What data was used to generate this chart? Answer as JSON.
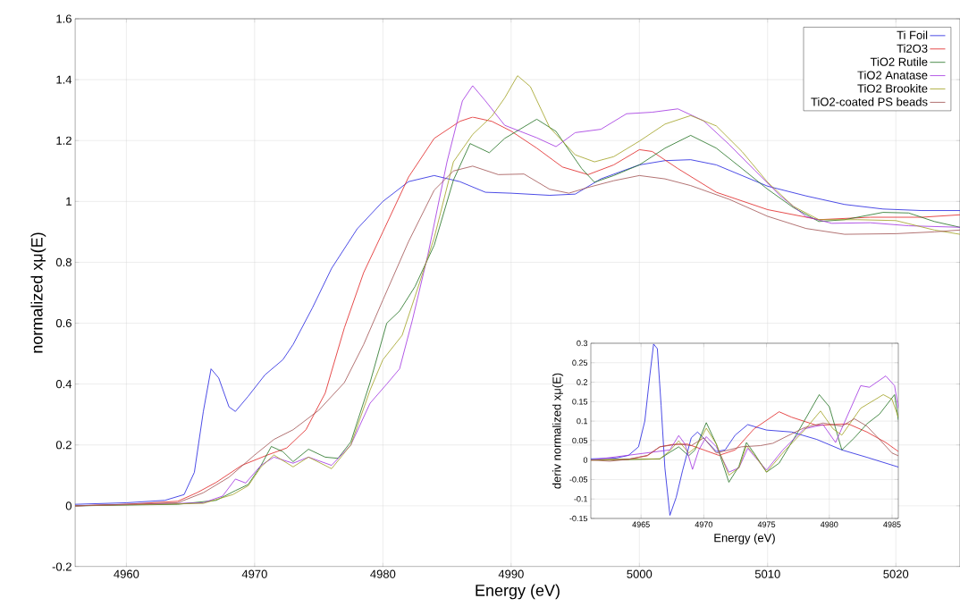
{
  "chart_data": [
    {
      "type": "line",
      "xlabel": "Energy (eV)",
      "ylabel": "normalized xμ(E)",
      "xlim": [
        4956,
        5025
      ],
      "ylim": [
        -0.2,
        1.6
      ],
      "xticks": [
        4960,
        4970,
        4980,
        4990,
        5000,
        5010,
        5020
      ],
      "yticks": [
        -0.2,
        0,
        0.2,
        0.4,
        0.6,
        0.8,
        1,
        1.2,
        1.4,
        1.6
      ],
      "grid": true,
      "legend": "top right",
      "series": [
        {
          "name": "Ti Foil",
          "color": "#2020e0",
          "x": [
            4956,
            4960,
            4963,
            4964.5,
            4965.3,
            4966,
            4966.6,
            4967.2,
            4968,
            4968.5,
            4969.5,
            4970.8,
            4972.2,
            4973,
            4974.5,
            4976,
            4978,
            4980,
            4982,
            4984,
            4986,
            4988,
            4990,
            4993,
            4995,
            4997,
            5000,
            5002,
            5004,
            5006,
            5008,
            5010,
            5013,
            5016,
            5019,
            5022,
            5025
          ],
          "values": [
            0.005,
            0.01,
            0.018,
            0.037,
            0.11,
            0.31,
            0.45,
            0.42,
            0.325,
            0.31,
            0.36,
            0.43,
            0.48,
            0.53,
            0.65,
            0.78,
            0.91,
            1.0,
            1.065,
            1.085,
            1.065,
            1.03,
            1.027,
            1.02,
            1.024,
            1.074,
            1.12,
            1.134,
            1.137,
            1.12,
            1.085,
            1.05,
            1.018,
            0.99,
            0.975,
            0.97,
            0.97
          ]
        },
        {
          "name": "Ti2O3",
          "color": "#e02020",
          "x": [
            4956,
            4960,
            4964,
            4965.5,
            4967,
            4969,
            4971,
            4972.5,
            4974,
            4975.5,
            4977,
            4978.5,
            4980,
            4982,
            4984,
            4986,
            4987,
            4988.5,
            4990,
            4992,
            4994,
            4996,
            4998,
            5000,
            5001,
            5003,
            5006,
            5010,
            5014,
            5018,
            5022,
            5025
          ],
          "values": [
            0.0,
            0.005,
            0.015,
            0.043,
            0.077,
            0.133,
            0.167,
            0.19,
            0.25,
            0.37,
            0.585,
            0.766,
            0.9,
            1.08,
            1.207,
            1.263,
            1.277,
            1.263,
            1.231,
            1.175,
            1.113,
            1.088,
            1.12,
            1.17,
            1.164,
            1.108,
            1.03,
            0.973,
            0.94,
            0.948,
            0.948,
            0.956
          ]
        },
        {
          "name": "TiO2 Rutile",
          "color": "#207020",
          "x": [
            4956,
            4964,
            4967,
            4968.5,
            4969.5,
            4970.5,
            4971.3,
            4972.2,
            4973,
            4974.2,
            4975.5,
            4976.5,
            4977.5,
            4979,
            4980.3,
            4981.3,
            4982.5,
            4984,
            4985.5,
            4986.8,
            4988.3,
            4989.5,
            4992,
            4993.5,
            4995.5,
            4996.5,
            4998,
            5000,
            5002,
            5004,
            5006,
            5008,
            5010,
            5012,
            5014,
            5016,
            5019,
            5021,
            5023,
            5025
          ],
          "values": [
            0.0,
            0.005,
            0.018,
            0.05,
            0.07,
            0.133,
            0.195,
            0.178,
            0.145,
            0.186,
            0.16,
            0.156,
            0.21,
            0.405,
            0.6,
            0.64,
            0.72,
            0.856,
            1.07,
            1.19,
            1.16,
            1.207,
            1.27,
            1.23,
            1.108,
            1.063,
            1.085,
            1.12,
            1.175,
            1.217,
            1.175,
            1.108,
            1.04,
            0.98,
            0.934,
            0.94,
            0.964,
            0.962,
            0.934,
            0.915
          ]
        },
        {
          "name": "TiO2 Anatase",
          "color": "#a030e0",
          "x": [
            4956,
            4966,
            4967.5,
            4968.5,
            4969.3,
            4970.5,
            4971.5,
            4973,
            4974.2,
            4976,
            4977.5,
            4979,
            4980.3,
            4981.3,
            4982.3,
            4983.5,
            4985,
            4986.2,
            4987,
            4988,
            4989.5,
            4992,
            4993.5,
            4995,
            4997,
            4999,
            5001,
            5003,
            5005,
            5007,
            5009,
            5011,
            5013,
            5015,
            5018,
            5021,
            5025
          ],
          "values": [
            0.0,
            0.01,
            0.032,
            0.088,
            0.075,
            0.133,
            0.16,
            0.14,
            0.16,
            0.133,
            0.2,
            0.337,
            0.4,
            0.45,
            0.61,
            0.823,
            1.13,
            1.33,
            1.38,
            1.33,
            1.25,
            1.209,
            1.18,
            1.226,
            1.237,
            1.288,
            1.293,
            1.304,
            1.265,
            1.187,
            1.102,
            1.018,
            0.95,
            0.928,
            0.93,
            0.92,
            0.915
          ]
        },
        {
          "name": "TiO2 Brookite",
          "color": "#a0a020",
          "x": [
            4956,
            4966,
            4968.3,
            4969.5,
            4970.5,
            4971.5,
            4973,
            4974.2,
            4976,
            4977.5,
            4979,
            4980,
            4981.5,
            4982.5,
            4984,
            4985.5,
            4987,
            4988.5,
            4989.5,
            4990.5,
            4991.5,
            4993,
            4995,
            4996.5,
            4998,
            5000,
            5002,
            5004,
            5006,
            5008,
            5010,
            5012,
            5014,
            5017,
            5020,
            5023,
            5025
          ],
          "values": [
            0.0,
            0.008,
            0.037,
            0.066,
            0.128,
            0.167,
            0.128,
            0.16,
            0.122,
            0.2,
            0.38,
            0.48,
            0.56,
            0.687,
            0.88,
            1.13,
            1.22,
            1.28,
            1.34,
            1.413,
            1.377,
            1.243,
            1.153,
            1.13,
            1.147,
            1.198,
            1.254,
            1.282,
            1.248,
            1.164,
            1.063,
            0.984,
            0.94,
            0.94,
            0.937,
            0.906,
            0.892
          ]
        },
        {
          "name": "TiO2-coated PS beads",
          "color": "#a05050",
          "x": [
            4956,
            4964,
            4966,
            4968,
            4970,
            4971.5,
            4973,
            4975,
            4977,
            4978.5,
            4980,
            4982,
            4984,
            4985.5,
            4987,
            4989,
            4991,
            4993,
            4994.5,
            4996,
            4998,
            5000,
            5002,
            5004,
            5007,
            5010,
            5013,
            5016,
            5020,
            5023,
            5025
          ],
          "values": [
            0.0,
            0.01,
            0.043,
            0.094,
            0.167,
            0.218,
            0.25,
            0.314,
            0.405,
            0.53,
            0.676,
            0.868,
            1.037,
            1.1,
            1.116,
            1.088,
            1.09,
            1.04,
            1.027,
            1.046,
            1.068,
            1.085,
            1.074,
            1.052,
            1.007,
            0.951,
            0.911,
            0.892,
            0.894,
            0.9,
            0.906
          ]
        }
      ]
    },
    {
      "type": "line",
      "xlabel": "Energy (eV)",
      "ylabel": "deriv normalized xμ(E)",
      "xlim": [
        4961,
        4985.5
      ],
      "ylim": [
        -0.15,
        0.3
      ],
      "xticks": [
        4965,
        4970,
        4975,
        4980,
        4985
      ],
      "yticks": [
        -0.15,
        -0.1,
        -0.05,
        0,
        0.05,
        0.1,
        0.15,
        0.2,
        0.25,
        0.3
      ],
      "grid": true,
      "series": [
        {
          "color": "#2020e0",
          "x": [
            4961,
            4963,
            4964,
            4964.8,
            4965.3,
            4965.7,
            4966,
            4966.3,
            4966.6,
            4966.9,
            4967.3,
            4967.8,
            4968.3,
            4969,
            4969.5,
            4970.2,
            4971,
            4971.7,
            4972.5,
            4973.5,
            4975,
            4977,
            4979,
            4981,
            4983,
            4985.5
          ],
          "values": [
            0.003,
            0.005,
            0.012,
            0.034,
            0.1,
            0.217,
            0.298,
            0.286,
            0.14,
            -0.02,
            -0.142,
            -0.096,
            -0.028,
            0.057,
            0.072,
            0.049,
            0.022,
            0.026,
            0.064,
            0.091,
            0.077,
            0.072,
            0.053,
            0.026,
            0.007,
            -0.018
          ]
        },
        {
          "color": "#e02020",
          "x": [
            4961,
            4964,
            4965.5,
            4966.5,
            4967.5,
            4968.7,
            4970,
            4971.2,
            4972.5,
            4974,
            4976,
            4977,
            4979,
            4981.5,
            4983,
            4984.5,
            4985.5
          ],
          "values": [
            0.0,
            0.002,
            0.011,
            0.034,
            0.04,
            0.041,
            0.026,
            0.012,
            0.026,
            0.08,
            0.124,
            0.11,
            0.089,
            0.093,
            0.072,
            0.045,
            0.022
          ]
        },
        {
          "color": "#207020",
          "x": [
            4961,
            4966.5,
            4967.3,
            4968,
            4968.8,
            4969.3,
            4970.2,
            4971,
            4972,
            4972.8,
            4973.4,
            4974,
            4975,
            4976,
            4977.5,
            4979.2,
            4980,
            4981,
            4982,
            4983,
            4984,
            4985.2,
            4985.5
          ],
          "values": [
            0.0,
            0.003,
            0.02,
            0.034,
            0.011,
            0.026,
            0.096,
            0.041,
            -0.057,
            -0.016,
            0.045,
            0.018,
            -0.031,
            -0.008,
            0.072,
            0.168,
            0.137,
            0.026,
            0.057,
            0.093,
            0.118,
            0.168,
            0.103
          ]
        },
        {
          "color": "#a030e0",
          "x": [
            4961,
            4966.5,
            4967.3,
            4968,
            4968.5,
            4969.1,
            4969.6,
            4970.2,
            4971,
            4972,
            4972.8,
            4973.5,
            4974,
            4975,
            4976.3,
            4978,
            4979.5,
            4980.5,
            4981.5,
            4982.5,
            4983.2,
            4984.5,
            4985.2,
            4985.5
          ],
          "values": [
            0.0,
            null,
            0.026,
            0.063,
            0.041,
            -0.024,
            0.026,
            0.06,
            0.034,
            -0.031,
            -0.02,
            0.03,
            0.011,
            -0.026,
            0.026,
            0.08,
            0.091,
            0.045,
            0.118,
            0.191,
            0.187,
            0.216,
            0.191,
            0.133
          ]
        },
        {
          "color": "#a0a020",
          "x": [
            4961,
            4966.5,
            4967.3,
            4968,
            4968.8,
            4969.4,
            4970.2,
            4971,
            4972,
            4972.8,
            4973.4,
            4974,
            4975,
            4976.5,
            4978,
            4979.3,
            4980.3,
            4981,
            4982.5,
            4984.3,
            4985,
            4985.5
          ],
          "values": [
            0.0,
            0.003,
            0.024,
            0.049,
            0.018,
            0.034,
            0.082,
            0.041,
            -0.039,
            -0.02,
            0.037,
            0.015,
            -0.031,
            0.026,
            0.076,
            0.126,
            0.08,
            0.064,
            0.133,
            0.168,
            0.156,
            0.11
          ]
        },
        {
          "color": "#a05050",
          "x": [
            4961,
            4962.5,
            4964,
            4965.5,
            4966.5,
            4968,
            4969,
            4970,
            4971,
            4972,
            4973,
            4974.5,
            4975.5,
            4976.8,
            4978,
            4979.5,
            4981,
            4982,
            4983,
            4984,
            4985,
            4985.5
          ],
          "values": [
            0.0,
            -0.003,
            0.002,
            0.012,
            0.034,
            0.041,
            0.037,
            0.057,
            0.018,
            0.026,
            0.034,
            0.037,
            0.043,
            0.064,
            0.083,
            0.095,
            0.087,
            0.106,
            0.087,
            0.053,
            0.018,
            0.011
          ]
        }
      ]
    }
  ]
}
